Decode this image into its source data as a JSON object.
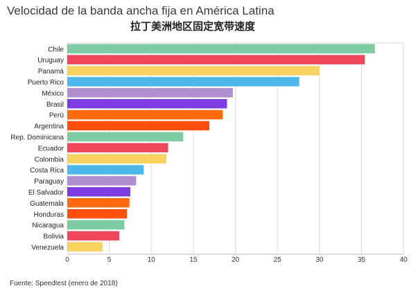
{
  "title": "Velocidad de la banda ancha fija en América Latina",
  "subtitle": "拉丁美洲地区固定宽带速度",
  "source": "Fuente: Speedtest (enero de 2018)",
  "chart_data": {
    "type": "bar",
    "orientation": "horizontal",
    "title": "Velocidad de la banda ancha fija en América Latina",
    "subtitle": "拉丁美洲地区固定宽带速度",
    "xlabel": "",
    "ylabel": "",
    "xlim": [
      0,
      40
    ],
    "xticks": [
      0,
      5,
      10,
      15,
      20,
      25,
      30,
      35,
      40
    ],
    "grid": true,
    "categories": [
      "Chile",
      "Uruguay",
      "Panamá",
      "Puerto Rico",
      "México",
      "Brasil",
      "Perú",
      "Argentina",
      "Rep. Dominicana",
      "Ecuador",
      "Colombia",
      "Costa Rica",
      "Paraguay",
      "El Salvador",
      "Guatemala",
      "Honduras",
      "Nicaragua",
      "Bolivia",
      "Venezuela"
    ],
    "values": [
      36.6,
      35.4,
      30.0,
      27.6,
      19.7,
      19.0,
      18.5,
      16.9,
      13.8,
      12.0,
      11.8,
      9.1,
      8.2,
      7.5,
      7.4,
      7.1,
      6.8,
      6.2,
      4.2
    ],
    "colors": [
      "#7fcca4",
      "#f0485a",
      "#f7d25e",
      "#4db8ea",
      "#b08fd1",
      "#7c3ce0",
      "#ff6a0f",
      "#ff4d0a",
      "#7fcca4",
      "#f0485a",
      "#f7d25e",
      "#4db8ea",
      "#b08fd1",
      "#7c3ce0",
      "#ff6a0f",
      "#ff4d0a",
      "#7fcca4",
      "#f0485a",
      "#f7d25e"
    ]
  }
}
